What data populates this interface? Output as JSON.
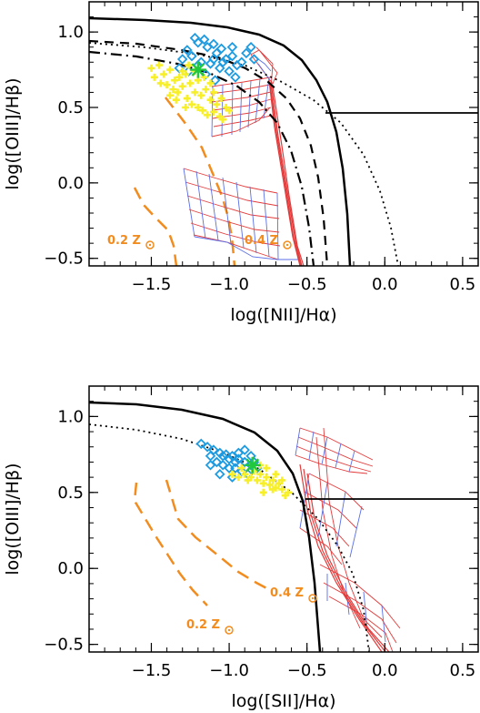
{
  "colors": {
    "blue_points": "#1e9be0",
    "yellow_points": "#f7ef2a",
    "green_star": "#22c83c",
    "orange_models": "#f28c1e",
    "red_grid": "#e33b3b",
    "blue_grid": "#5a6fe8",
    "black": "#000000"
  },
  "chart_data": [
    {
      "type": "scatter",
      "xlabel": "log([NII]/Hα)",
      "ylabel": "log([OIII]/Hβ)",
      "xlim": [
        -1.9,
        0.6
      ],
      "ylim": [
        -0.55,
        1.2
      ],
      "xticks": [
        -1.5,
        -1.0,
        -0.5,
        0.0,
        0.5
      ],
      "xtick_labels": [
        "−1.5",
        "−1.0",
        "−0.5",
        "0.0",
        "0.5"
      ],
      "yticks": [
        -0.5,
        0.0,
        0.5,
        1.0
      ],
      "ytick_labels": [
        "−0.5",
        "0.0",
        "0.5",
        "1.0"
      ],
      "annotations": [
        {
          "text": "0.2 Z",
          "x": -1.55,
          "y": -0.37
        },
        {
          "text": "0.4 Z",
          "x": -0.84,
          "y": -0.37
        }
      ],
      "series": [
        {
          "kind": "diamond",
          "color": "#1e9be0",
          "points": [
            [
              -1.22,
              0.96
            ],
            [
              -1.2,
              0.93
            ],
            [
              -1.16,
              0.95
            ],
            [
              -1.14,
              0.9
            ],
            [
              -1.1,
              0.92
            ],
            [
              -1.08,
              0.86
            ],
            [
              -1.05,
              0.89
            ],
            [
              -1.02,
              0.82
            ],
            [
              -0.98,
              0.84
            ],
            [
              -0.95,
              0.78
            ],
            [
              -0.92,
              0.8
            ],
            [
              -1.27,
              0.88
            ],
            [
              -1.24,
              0.84
            ],
            [
              -1.18,
              0.8
            ],
            [
              -1.12,
              0.79
            ],
            [
              -1.06,
              0.76
            ],
            [
              -1.0,
              0.74
            ],
            [
              -0.96,
              0.7
            ],
            [
              -1.3,
              0.82
            ],
            [
              -1.15,
              0.72
            ],
            [
              -1.09,
              0.68
            ],
            [
              -0.89,
              0.86
            ],
            [
              -0.86,
              0.9
            ],
            [
              -0.84,
              0.82
            ],
            [
              -1.2,
              0.78
            ],
            [
              -1.1,
              0.82
            ],
            [
              -1.04,
              0.8
            ],
            [
              -0.98,
              0.9
            ],
            [
              -1.32,
              0.76
            ],
            [
              -1.26,
              0.74
            ]
          ]
        },
        {
          "kind": "cross",
          "color": "#f7ef2a",
          "points": [
            [
              -1.45,
              0.78
            ],
            [
              -1.42,
              0.72
            ],
            [
              -1.38,
              0.75
            ],
            [
              -1.35,
              0.68
            ],
            [
              -1.32,
              0.7
            ],
            [
              -1.3,
              0.64
            ],
            [
              -1.28,
              0.72
            ],
            [
              -1.25,
              0.66
            ],
            [
              -1.22,
              0.6
            ],
            [
              -1.2,
              0.68
            ],
            [
              -1.18,
              0.58
            ],
            [
              -1.15,
              0.62
            ],
            [
              -1.12,
              0.55
            ],
            [
              -1.1,
              0.6
            ],
            [
              -1.08,
              0.52
            ],
            [
              -1.05,
              0.56
            ],
            [
              -1.02,
              0.5
            ],
            [
              -1.4,
              0.65
            ],
            [
              -1.36,
              0.62
            ],
            [
              -1.33,
              0.6
            ],
            [
              -1.27,
              0.56
            ],
            [
              -1.24,
              0.52
            ],
            [
              -1.2,
              0.5
            ],
            [
              -1.17,
              0.48
            ],
            [
              -1.14,
              0.45
            ],
            [
              -1.1,
              0.47
            ],
            [
              -1.06,
              0.44
            ],
            [
              -1.5,
              0.76
            ],
            [
              -1.48,
              0.7
            ],
            [
              -1.44,
              0.66
            ],
            [
              -1.3,
              0.74
            ],
            [
              -1.26,
              0.78
            ],
            [
              -1.22,
              0.74
            ],
            [
              -1.16,
              0.7
            ],
            [
              -1.12,
              0.66
            ],
            [
              -1.0,
              0.48
            ],
            [
              -1.04,
              0.42
            ],
            [
              -1.28,
              0.5
            ],
            [
              -1.34,
              0.55
            ],
            [
              -1.38,
              0.58
            ]
          ]
        },
        {
          "kind": "star",
          "color": "#22c83c",
          "points": [
            [
              -1.2,
              0.75
            ]
          ]
        }
      ]
    },
    {
      "type": "scatter",
      "xlabel": "log([SII]/Hα)",
      "ylabel": "log([OIII]/Hβ)",
      "xlim": [
        -1.9,
        0.6
      ],
      "ylim": [
        -0.55,
        1.2
      ],
      "xticks": [
        -1.5,
        -1.0,
        -0.5,
        0.0,
        0.5
      ],
      "xtick_labels": [
        "−1.5",
        "−1.0",
        "−0.5",
        "0.0",
        "0.5"
      ],
      "yticks": [
        -0.5,
        0.0,
        0.5,
        1.0
      ],
      "ytick_labels": [
        "−0.5",
        "0.0",
        "0.5",
        "1.0"
      ],
      "annotations": [
        {
          "text": "0.4 Z",
          "x": -0.54,
          "y": -0.28
        },
        {
          "text": "0.2 Z",
          "x": -1.21,
          "y": -0.42
        }
      ],
      "series": [
        {
          "kind": "diamond",
          "color": "#1e9be0",
          "points": [
            [
              -1.18,
              0.82
            ],
            [
              -1.14,
              0.8
            ],
            [
              -1.1,
              0.78
            ],
            [
              -1.06,
              0.76
            ],
            [
              -1.02,
              0.75
            ],
            [
              -0.98,
              0.74
            ],
            [
              -0.94,
              0.72
            ],
            [
              -0.9,
              0.7
            ],
            [
              -0.86,
              0.68
            ],
            [
              -1.08,
              0.7
            ],
            [
              -1.04,
              0.68
            ],
            [
              -1.0,
              0.66
            ],
            [
              -0.96,
              0.66
            ],
            [
              -0.92,
              0.64
            ],
            [
              -0.88,
              0.62
            ],
            [
              -0.84,
              0.7
            ],
            [
              -0.82,
              0.66
            ],
            [
              -1.12,
              0.74
            ],
            [
              -1.06,
              0.62
            ],
            [
              -0.98,
              0.6
            ],
            [
              -0.94,
              0.76
            ],
            [
              -0.9,
              0.78
            ],
            [
              -0.86,
              0.74
            ],
            [
              -1.0,
              0.72
            ],
            [
              -1.12,
              0.68
            ],
            [
              -0.96,
              0.7
            ],
            [
              -1.04,
              0.74
            ]
          ]
        },
        {
          "kind": "cross",
          "color": "#f7ef2a",
          "points": [
            [
              -0.9,
              0.62
            ],
            [
              -0.86,
              0.6
            ],
            [
              -0.82,
              0.58
            ],
            [
              -0.78,
              0.56
            ],
            [
              -0.74,
              0.55
            ],
            [
              -0.7,
              0.53
            ],
            [
              -0.66,
              0.52
            ],
            [
              -0.62,
              0.5
            ],
            [
              -0.84,
              0.64
            ],
            [
              -0.8,
              0.62
            ],
            [
              -0.76,
              0.6
            ],
            [
              -0.72,
              0.58
            ],
            [
              -0.68,
              0.56
            ],
            [
              -0.88,
              0.58
            ],
            [
              -0.94,
              0.6
            ],
            [
              -0.98,
              0.62
            ],
            [
              -0.64,
              0.48
            ],
            [
              -0.72,
              0.52
            ],
            [
              -0.78,
              0.5
            ],
            [
              -0.8,
              0.68
            ],
            [
              -0.76,
              0.66
            ],
            [
              -0.7,
              0.62
            ],
            [
              -0.66,
              0.58
            ],
            [
              -0.92,
              0.66
            ]
          ]
        },
        {
          "kind": "star",
          "color": "#22c83c",
          "points": [
            [
              -0.85,
              0.68
            ]
          ]
        }
      ]
    }
  ]
}
